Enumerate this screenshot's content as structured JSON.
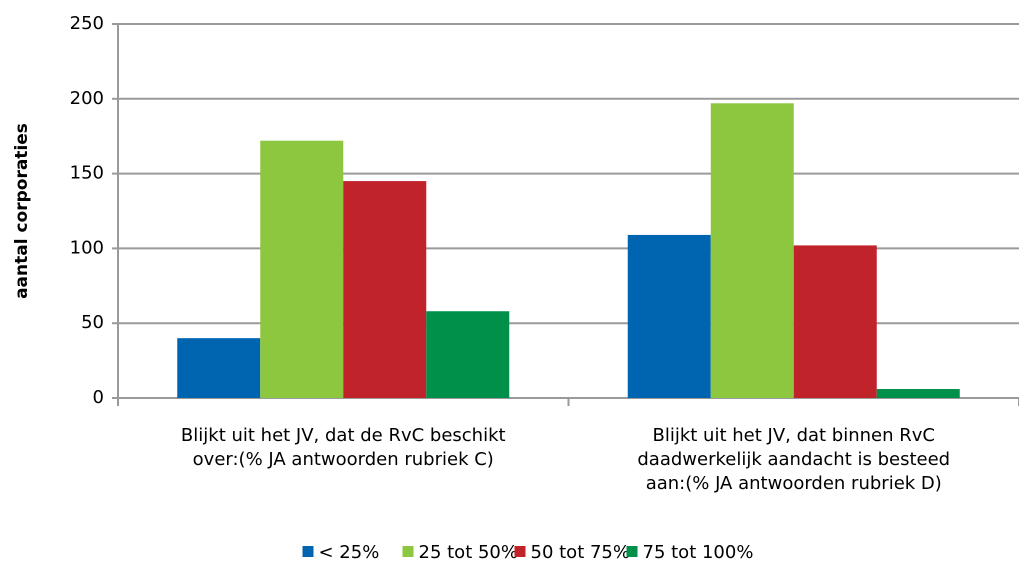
{
  "chart_data": {
    "type": "bar",
    "y_label": "aantal corporaties",
    "categories": [
      "Blijkt uit het JV, dat de RvC beschikt\nover:(% JA antwoorden rubriek C)",
      "Blijkt uit het JV, dat binnen RvC\ndaadwerkelijk aandacht is besteed\naan:(% JA antwoorden rubriek D)"
    ],
    "series": [
      {
        "name": "< 25%",
        "color": "#0065b0",
        "values": [
          40,
          109
        ]
      },
      {
        "name": "25 tot 50%",
        "color": "#8dc63f",
        "values": [
          172,
          197
        ]
      },
      {
        "name": "50 tot 75%",
        "color": "#c1232b",
        "values": [
          145,
          102
        ]
      },
      {
        "name": "75 tot 100%",
        "color": "#00904a",
        "values": [
          58,
          6
        ]
      }
    ],
    "ylim": [
      0,
      250
    ],
    "yticks": [
      0,
      50,
      100,
      150,
      200,
      250
    ],
    "grid": true,
    "legend": "bottom"
  }
}
